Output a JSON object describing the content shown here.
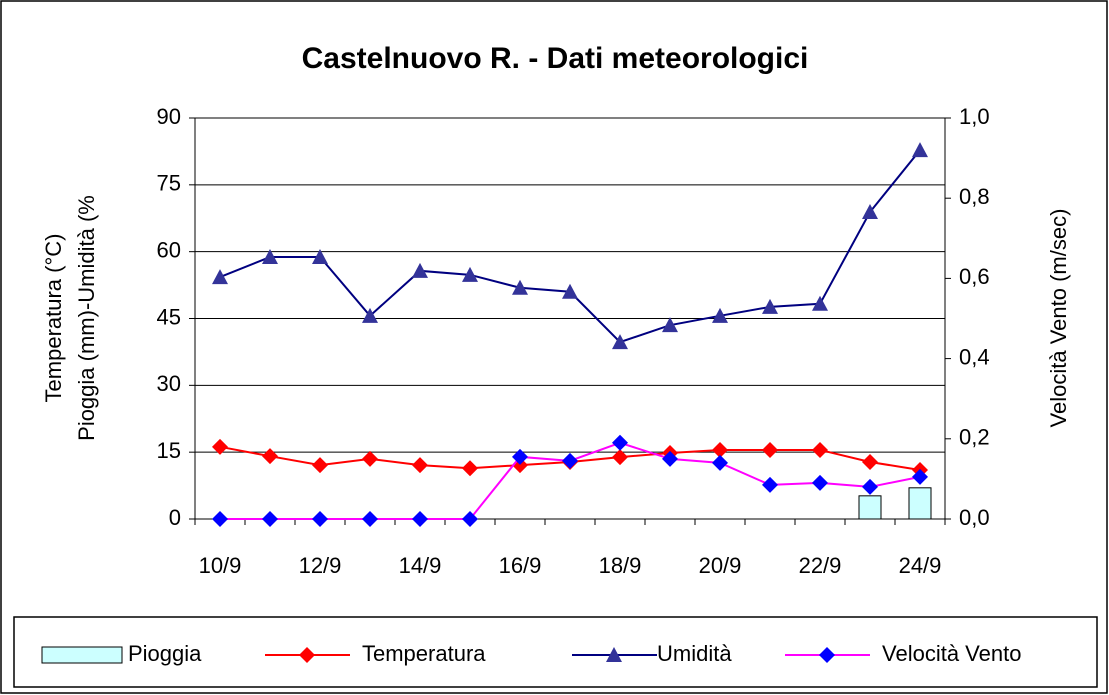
{
  "chart_data": {
    "type": "combo",
    "title": "Castelnuovo R. - Dati meteorologici",
    "y_label_lines": [
      "Temperatura (°C)",
      "Pioggia (mm)-Umidità (%"
    ],
    "y2_label": "Velocità Vento (m/sec)",
    "categories": [
      "10/9",
      null,
      "12/9",
      null,
      "14/9",
      null,
      "16/9",
      null,
      "18/9",
      null,
      "20/9",
      null,
      "22/9",
      null,
      "24/9"
    ],
    "ylim": [
      0,
      90
    ],
    "yticks": [
      0,
      15,
      30,
      45,
      60,
      75,
      90
    ],
    "y2lim": [
      0,
      1
    ],
    "y2ticks": [
      {
        "value": 0,
        "label": "0,0"
      },
      {
        "value": 0.2,
        "label": "0,2"
      },
      {
        "value": 0.4,
        "label": "0,4"
      },
      {
        "value": 0.6,
        "label": "0,6"
      },
      {
        "value": 0.8,
        "label": "0,8"
      },
      {
        "value": 1,
        "label": "1,0"
      }
    ],
    "grid": true,
    "legend": "bottom",
    "series": [
      {
        "name": "Pioggia",
        "type": "bar",
        "color": "#ccffff",
        "values": [
          0,
          0,
          0,
          0,
          0,
          0,
          0,
          0,
          0,
          0,
          0,
          0,
          0,
          5.2,
          7
        ]
      },
      {
        "name": "Temperatura",
        "type": "line",
        "marker": "diamond",
        "color": "#ff0000",
        "values": [
          16.2,
          14.1,
          12.1,
          13.5,
          12.1,
          11.4,
          12.1,
          12.8,
          13.9,
          14.8,
          15.5,
          15.5,
          15.5,
          12.8,
          11
        ]
      },
      {
        "name": "Umidità",
        "type": "line",
        "marker": "triangle",
        "color": "#000080",
        "marker_color": "#333399",
        "values": [
          54.3,
          58.8,
          58.8,
          45.6,
          55.7,
          54.8,
          51.9,
          51,
          39.7,
          43.5,
          45.6,
          47.6,
          48.3,
          68.9,
          82.8
        ]
      },
      {
        "name": "Velocità Vento",
        "type": "line",
        "marker": "diamond",
        "axis": "y2",
        "color": "#ff00ff",
        "marker_color": "#0000ff",
        "values": [
          0,
          0,
          0,
          0,
          0,
          0,
          0.155,
          0.145,
          0.19,
          0.15,
          0.14,
          0.085,
          0.09,
          0.08,
          0.105
        ]
      }
    ]
  }
}
